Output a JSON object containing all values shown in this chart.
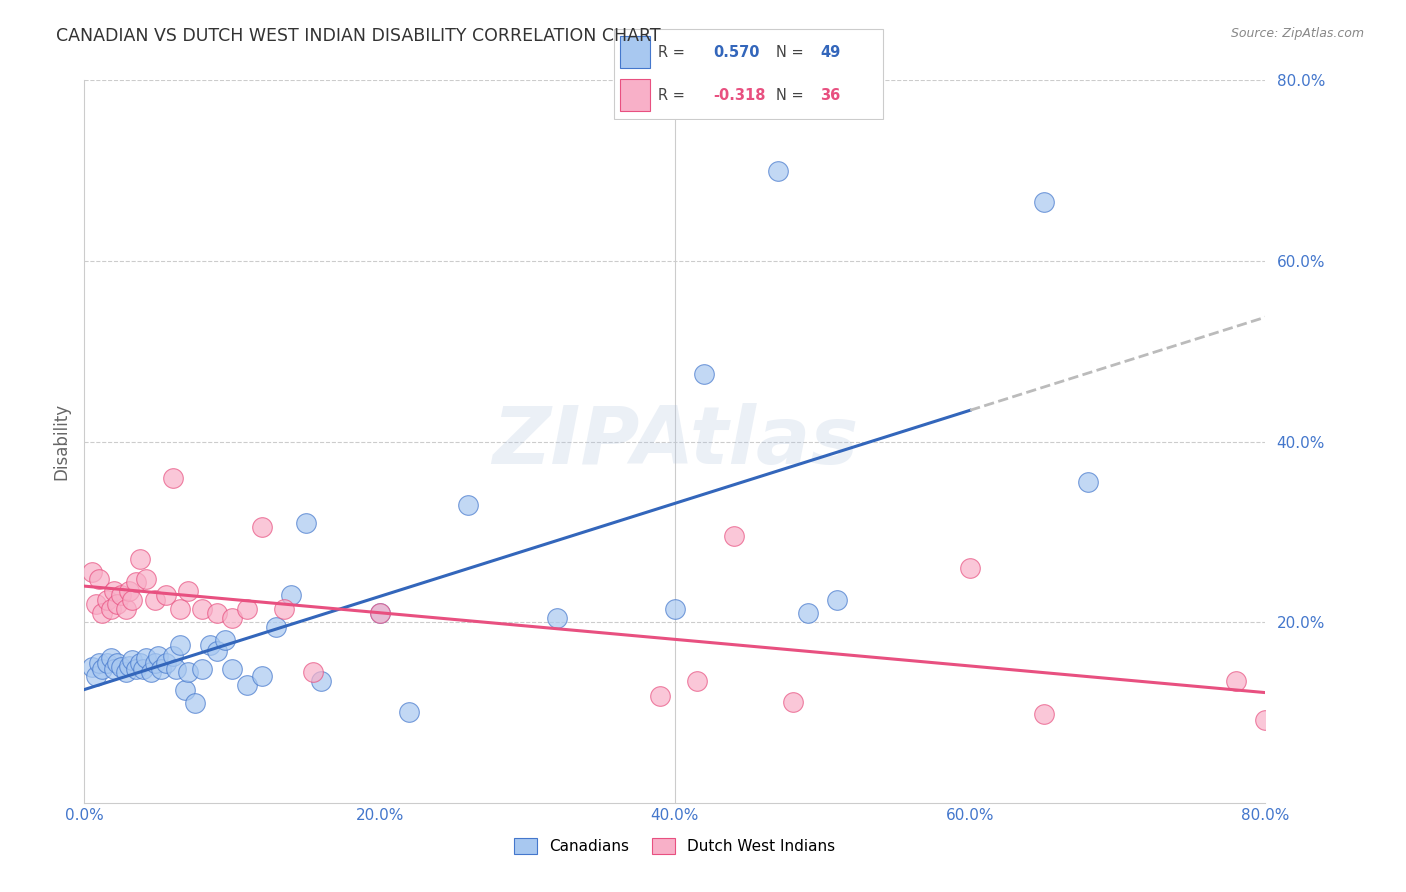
{
  "title": "CANADIAN VS DUTCH WEST INDIAN DISABILITY CORRELATION CHART",
  "source": "Source: ZipAtlas.com",
  "ylabel": "Disability",
  "xlim": [
    0.0,
    0.8
  ],
  "ylim": [
    0.0,
    0.8
  ],
  "xtick_labels": [
    "0.0%",
    "",
    "20.0%",
    "",
    "40.0%",
    "",
    "60.0%",
    "",
    "80.0%"
  ],
  "xtick_vals": [
    0.0,
    0.1,
    0.2,
    0.3,
    0.4,
    0.5,
    0.6,
    0.7,
    0.8
  ],
  "ytick_labels": [
    "20.0%",
    "40.0%",
    "60.0%",
    "80.0%"
  ],
  "ytick_vals": [
    0.2,
    0.4,
    0.6,
    0.8
  ],
  "blue_R": 0.57,
  "blue_N": 49,
  "pink_R": -0.318,
  "pink_N": 36,
  "blue_color": "#a8c8f0",
  "pink_color": "#f8b0c8",
  "blue_edge_color": "#4477cc",
  "pink_edge_color": "#e85080",
  "blue_line_color": "#3366bb",
  "pink_line_color": "#e85080",
  "dashed_line_color": "#bbbbbb",
  "canadians_label": "Canadians",
  "dutch_label": "Dutch West Indians",
  "watermark": "ZIPAtlas",
  "title_color": "#333333",
  "axis_label_color": "#666666",
  "tick_label_color": "#4477cc",
  "blue_scatter_x": [
    0.005,
    0.008,
    0.01,
    0.012,
    0.015,
    0.018,
    0.02,
    0.022,
    0.025,
    0.028,
    0.03,
    0.032,
    0.035,
    0.038,
    0.04,
    0.042,
    0.045,
    0.048,
    0.05,
    0.052,
    0.055,
    0.06,
    0.062,
    0.065,
    0.068,
    0.07,
    0.075,
    0.08,
    0.085,
    0.09,
    0.095,
    0.1,
    0.11,
    0.12,
    0.13,
    0.14,
    0.15,
    0.16,
    0.2,
    0.22,
    0.26,
    0.32,
    0.4,
    0.42,
    0.47,
    0.49,
    0.51,
    0.65,
    0.68
  ],
  "blue_scatter_y": [
    0.15,
    0.14,
    0.155,
    0.148,
    0.155,
    0.16,
    0.148,
    0.155,
    0.15,
    0.145,
    0.152,
    0.158,
    0.148,
    0.155,
    0.148,
    0.16,
    0.145,
    0.155,
    0.162,
    0.148,
    0.155,
    0.162,
    0.148,
    0.175,
    0.125,
    0.145,
    0.11,
    0.148,
    0.175,
    0.168,
    0.18,
    0.148,
    0.13,
    0.14,
    0.195,
    0.23,
    0.31,
    0.135,
    0.21,
    0.1,
    0.33,
    0.205,
    0.215,
    0.475,
    0.7,
    0.21,
    0.225,
    0.665,
    0.355
  ],
  "pink_scatter_x": [
    0.005,
    0.008,
    0.01,
    0.012,
    0.015,
    0.018,
    0.02,
    0.022,
    0.025,
    0.028,
    0.03,
    0.032,
    0.035,
    0.038,
    0.042,
    0.048,
    0.055,
    0.06,
    0.065,
    0.07,
    0.08,
    0.09,
    0.1,
    0.11,
    0.12,
    0.135,
    0.155,
    0.2,
    0.39,
    0.415,
    0.44,
    0.48,
    0.6,
    0.65,
    0.78,
    0.8
  ],
  "pink_scatter_y": [
    0.255,
    0.22,
    0.248,
    0.21,
    0.225,
    0.215,
    0.235,
    0.22,
    0.23,
    0.215,
    0.235,
    0.225,
    0.245,
    0.27,
    0.248,
    0.225,
    0.23,
    0.36,
    0.215,
    0.235,
    0.215,
    0.21,
    0.205,
    0.215,
    0.305,
    0.215,
    0.145,
    0.21,
    0.118,
    0.135,
    0.295,
    0.112,
    0.26,
    0.098,
    0.135,
    0.092
  ]
}
